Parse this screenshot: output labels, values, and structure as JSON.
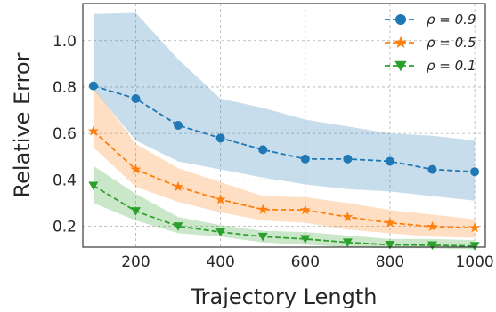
{
  "chart_data": {
    "type": "line",
    "xlabel": "Trajectory Length",
    "ylabel": "Relative Error",
    "xlim": [
      75,
      1025
    ],
    "ylim": [
      0.11,
      1.16
    ],
    "xticks": [
      200,
      400,
      600,
      800,
      1000
    ],
    "yticks": [
      0.2,
      0.4,
      0.6,
      0.8,
      1.0
    ],
    "xtick_labels": [
      "200",
      "400",
      "600",
      "800",
      "1000"
    ],
    "ytick_labels": [
      "0.2",
      "0.4",
      "0.6",
      "0.8",
      "1.0"
    ],
    "grid": true,
    "legend_position": "top-right",
    "x": [
      100,
      200,
      300,
      400,
      500,
      600,
      700,
      800,
      900,
      1000
    ],
    "series": [
      {
        "name": "ρ = 0.9",
        "color": "#1f77b4",
        "marker": "circle",
        "values": [
          0.805,
          0.75,
          0.635,
          0.58,
          0.53,
          0.49,
          0.49,
          0.48,
          0.445,
          0.435
        ],
        "lower": [
          0.79,
          0.57,
          0.48,
          0.445,
          0.41,
          0.38,
          0.36,
          0.35,
          0.33,
          0.31
        ],
        "upper": [
          1.115,
          1.12,
          0.92,
          0.75,
          0.71,
          0.66,
          0.63,
          0.6,
          0.59,
          0.57
        ]
      },
      {
        "name": "ρ = 0.5",
        "color": "#ff7f0e",
        "marker": "star",
        "values": [
          0.61,
          0.445,
          0.37,
          0.315,
          0.272,
          0.27,
          0.24,
          0.215,
          0.198,
          0.193
        ],
        "lower": [
          0.54,
          0.37,
          0.305,
          0.26,
          0.225,
          0.215,
          0.185,
          0.17,
          0.155,
          0.15
        ],
        "upper": [
          0.8,
          0.555,
          0.45,
          0.39,
          0.33,
          0.325,
          0.3,
          0.27,
          0.25,
          0.23
        ]
      },
      {
        "name": "ρ = 0.1",
        "color": "#2ca02c",
        "marker": "triangle-down",
        "values": [
          0.375,
          0.265,
          0.2,
          0.175,
          0.155,
          0.145,
          0.13,
          0.12,
          0.118,
          0.115
        ],
        "lower": [
          0.3,
          0.225,
          0.17,
          0.155,
          0.13,
          0.12,
          0.11,
          0.105,
          0.105,
          0.1
        ],
        "upper": [
          0.46,
          0.34,
          0.24,
          0.205,
          0.18,
          0.175,
          0.16,
          0.145,
          0.145,
          0.14
        ]
      }
    ]
  }
}
